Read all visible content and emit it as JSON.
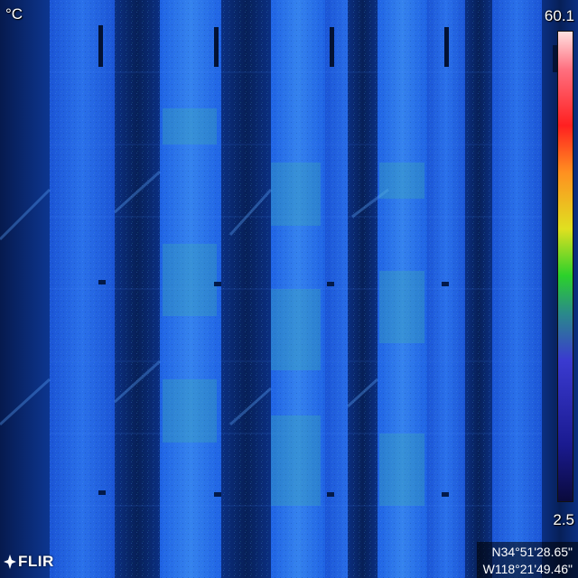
{
  "hud": {
    "unit": "°C",
    "scale_max": "60.1",
    "scale_min": "2.5"
  },
  "gps": {
    "latitude": "N34°51'28.65\"",
    "longitude": "W118°21'49.46\""
  },
  "brand": {
    "logo_text": "FLIR"
  },
  "palette": {
    "background": "#0a2a7a",
    "panel": "#1f5fe0",
    "panel_bright": "#2c78ea",
    "gap_dark": "#082566",
    "hotspot": "#3fb0b0",
    "colorbar_stops": [
      "#0a0a3c",
      "#1a1a90",
      "#3a3ad0",
      "#2a8a8a",
      "#2bd12b",
      "#e0e020",
      "#ff9020",
      "#ff2020",
      "#ff7080",
      "#ffe0e0"
    ]
  }
}
